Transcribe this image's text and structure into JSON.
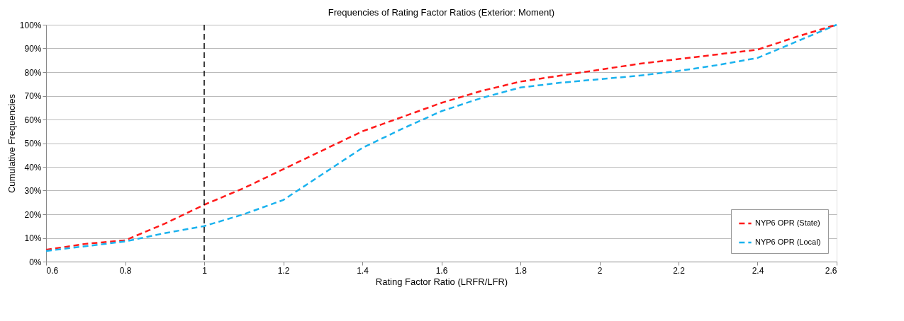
{
  "chart_data": {
    "type": "line",
    "title": "Frequencies of Rating Factor Ratios (Exterior: Moment)",
    "xlabel": "Rating Factor Ratio (LRFR/LFR)",
    "ylabel": "Cumulative Frequencies",
    "x": [
      0.6,
      0.7,
      0.8,
      0.9,
      1.0,
      1.1,
      1.2,
      1.3,
      1.4,
      1.5,
      1.6,
      1.7,
      1.8,
      1.9,
      2.0,
      2.1,
      2.2,
      2.3,
      2.4,
      2.5,
      2.6
    ],
    "series": [
      {
        "name": "NYP6 OPR (State)",
        "color": "#ff1a1a",
        "values": [
          5,
          7.5,
          9,
          16,
          24,
          31,
          39,
          47,
          55,
          61,
          67,
          72,
          76,
          78.5,
          81,
          83.5,
          85.5,
          87.5,
          89.5,
          95,
          100
        ]
      },
      {
        "name": "NYP6 OPR (Local)",
        "color": "#1ab2ee",
        "values": [
          4.5,
          6.5,
          8.5,
          12,
          15,
          20,
          26,
          37,
          48,
          56,
          63.5,
          69,
          73.5,
          75.5,
          77,
          78.5,
          80.5,
          83,
          86,
          93,
          100
        ]
      }
    ],
    "xlim": [
      0.6,
      2.6
    ],
    "xticks": [
      0.6,
      0.8,
      1,
      1.2,
      1.4,
      1.6,
      1.8,
      2,
      2.2,
      2.4,
      2.6
    ],
    "ylim": [
      0,
      100
    ],
    "yticks": [
      {
        "value": 0,
        "label": "0%"
      },
      {
        "value": 10,
        "label": "10%"
      },
      {
        "value": 20,
        "label": "20%"
      },
      {
        "value": 30,
        "label": "30%"
      },
      {
        "value": 40,
        "label": "40%"
      },
      {
        "value": 50,
        "label": "50%"
      },
      {
        "value": 60,
        "label": "60%"
      },
      {
        "value": 70,
        "label": "70%"
      },
      {
        "value": 80,
        "label": "80%"
      },
      {
        "value": 90,
        "label": "90%"
      },
      {
        "value": 100,
        "label": "100%"
      }
    ],
    "ref_lines": [
      {
        "axis": "x",
        "value": 1,
        "color": "#000000",
        "line_style": "dashed"
      }
    ],
    "grid": "y",
    "legend": "bottom right",
    "line_style": "dashed",
    "marker": "none"
  }
}
